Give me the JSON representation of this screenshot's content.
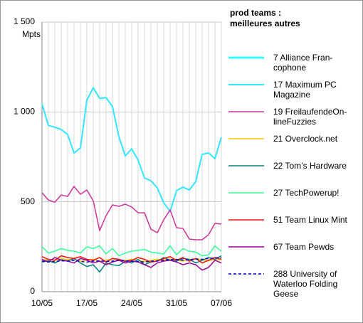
{
  "chart_data": {
    "type": "line",
    "legend_title": "prod teams :\nmeilleures autres",
    "y_label": "Mpts",
    "categories": [
      "10/05",
      null,
      null,
      null,
      null,
      null,
      null,
      "17/05",
      null,
      null,
      null,
      null,
      null,
      null,
      "24/05",
      null,
      null,
      null,
      null,
      null,
      null,
      "31/05",
      null,
      null,
      null,
      null,
      null,
      null,
      "07/06"
    ],
    "ylim": [
      0,
      1500
    ],
    "yticks": [
      0,
      500,
      {
        "value": 1000,
        "label": "1 000"
      },
      {
        "value": 1500,
        "label": "1 500"
      }
    ],
    "grid": true,
    "series": [
      {
        "name": "7 Alliance Fran-\ncophone",
        "color": "#33ffff",
        "width": 3,
        "dash": false,
        "values": [
          null,
          null,
          null,
          null,
          null,
          null,
          null,
          null,
          null,
          null,
          null,
          null,
          null,
          null,
          null,
          null,
          null,
          null,
          null,
          null,
          null,
          null,
          null,
          null,
          null,
          null,
          null,
          null,
          null
        ]
      },
      {
        "name": "17 Maximum PC\nMagazine",
        "color": "#33e6ff",
        "width": 2,
        "dash": false,
        "values": [
          1045,
          925,
          915,
          902,
          875,
          772,
          800,
          1065,
          1135,
          1075,
          1080,
          1030,
          862,
          755,
          795,
          732,
          633,
          617,
          578,
          495,
          447,
          562,
          582,
          566,
          613,
          764,
          772,
          740,
          859
        ]
      },
      {
        "name": "19 FreilaufendeOn-\nlineFuzzies",
        "color": "#cc3399",
        "width": 1.5,
        "dash": false,
        "values": [
          550,
          510,
          498,
          538,
          530,
          586,
          542,
          566,
          506,
          340,
          423,
          483,
          475,
          487,
          471,
          439,
          439,
          348,
          328,
          400,
          455,
          356,
          352,
          293,
          289,
          289,
          317,
          380,
          376
        ]
      },
      {
        "name": "21 Overclock.net",
        "color": "#ffcc00",
        "width": 1.5,
        "dash": false,
        "values": [
          175,
          180,
          172,
          185,
          178,
          182,
          170,
          176,
          180,
          168,
          175,
          182,
          178,
          172,
          180,
          176,
          168,
          174,
          180,
          177,
          182,
          175,
          170,
          178,
          184,
          176,
          172,
          180,
          178
        ]
      },
      {
        "name": "22 Tom’s Hardware",
        "color": "#008080",
        "width": 1.5,
        "dash": false,
        "values": [
          165,
          172,
          160,
          178,
          170,
          185,
          160,
          140,
          150,
          110,
          160,
          150,
          145,
          170,
          160,
          180,
          150,
          165,
          170,
          190,
          175,
          170,
          185,
          180,
          160,
          175,
          190,
          180,
          200
        ]
      },
      {
        "name": "27 TechPowerup!",
        "color": "#33ff99",
        "width": 1.5,
        "dash": false,
        "values": [
          250,
          215,
          225,
          240,
          230,
          225,
          215,
          250,
          240,
          255,
          210,
          240,
          200,
          215,
          225,
          230,
          235,
          220,
          215,
          210,
          255,
          205,
          240,
          225,
          220,
          200,
          205,
          255,
          225
        ]
      },
      {
        "name": "51 Team Linux Mint",
        "color": "#ee1111",
        "width": 1.5,
        "dash": false,
        "values": [
          195,
          180,
          175,
          200,
          190,
          185,
          195,
          180,
          175,
          190,
          165,
          185,
          180,
          170,
          175,
          190,
          180,
          165,
          170,
          185,
          195,
          175,
          190,
          170,
          185,
          160,
          175,
          190,
          180
        ]
      },
      {
        "name": "67 Team Pewds",
        "color": "#990099",
        "width": 1.5,
        "dash": false,
        "values": [
          180,
          165,
          190,
          175,
          170,
          160,
          185,
          175,
          160,
          170,
          150,
          165,
          175,
          160,
          170,
          165,
          150,
          135,
          160,
          170,
          175,
          165,
          150,
          160,
          150,
          120,
          135,
          175,
          160
        ]
      },
      {
        "name": "288 University of\nWaterloo Folding\nGeese",
        "color": "#0000cc",
        "width": 1.5,
        "dash": true,
        "values": [
          170,
          165,
          168,
          172,
          170,
          175,
          168,
          165,
          170,
          172,
          168,
          170,
          175,
          172,
          170,
          168,
          165,
          170,
          172,
          175,
          178,
          180,
          175,
          178,
          182,
          180,
          185,
          188,
          190
        ]
      }
    ]
  }
}
